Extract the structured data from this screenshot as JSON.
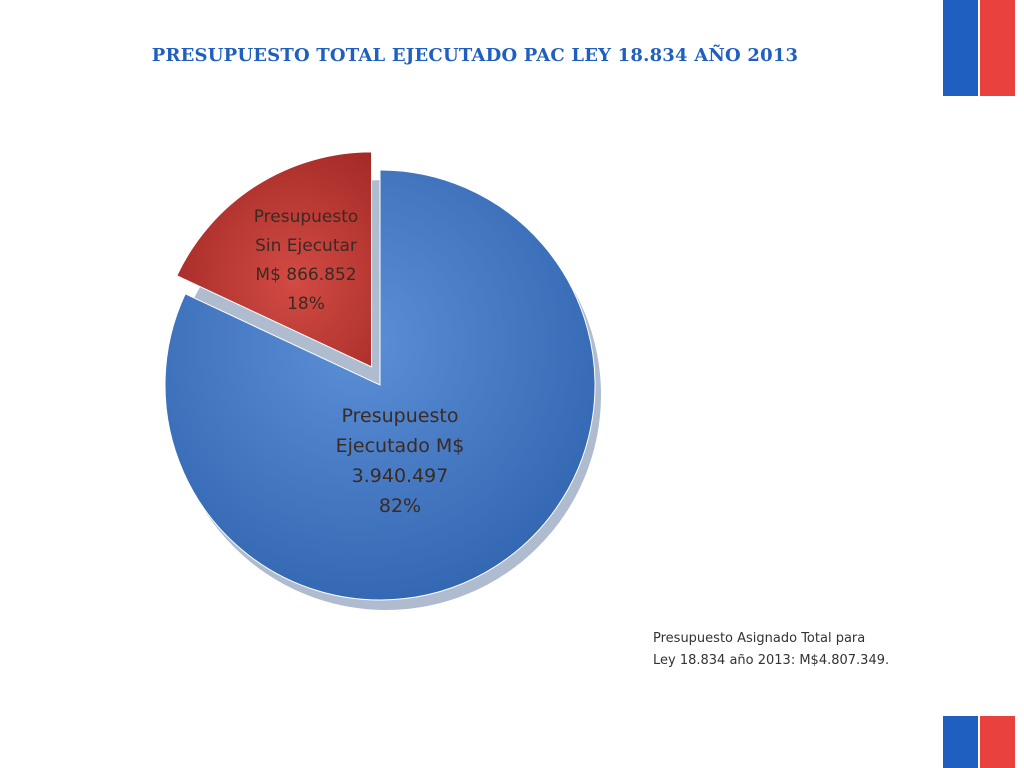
{
  "title": "PRESUPUESTO TOTAL EJECUTADO PAC LEY 18.834 AÑO 2013",
  "colors": {
    "title": "#1f5fbf",
    "executed": "#3f75c0",
    "not_executed": "#c0332f",
    "flag_blue": "#1f5fbf",
    "flag_red": "#e8413e"
  },
  "chart_data": {
    "type": "pie",
    "title": "PRESUPUESTO TOTAL EJECUTADO PAC LEY 18.834 AÑO 2013",
    "slices": [
      {
        "key": "not_executed",
        "label_lines": [
          "Presupuesto",
          "Sin Ejecutar",
          "M$ 866.852",
          "18%"
        ],
        "value": 866852,
        "percent": 18,
        "color": "#c0332f",
        "exploded": true
      },
      {
        "key": "executed",
        "label_lines": [
          "Presupuesto",
          "Ejecutado M$",
          "3.940.497",
          "82%"
        ],
        "value": 3940497,
        "percent": 82,
        "color": "#3f75c0",
        "exploded": false
      }
    ],
    "legend": "none"
  },
  "note": {
    "line1": "Presupuesto Asignado Total para",
    "line2": "Ley 18.834 año 2013: M$4.807.349."
  }
}
